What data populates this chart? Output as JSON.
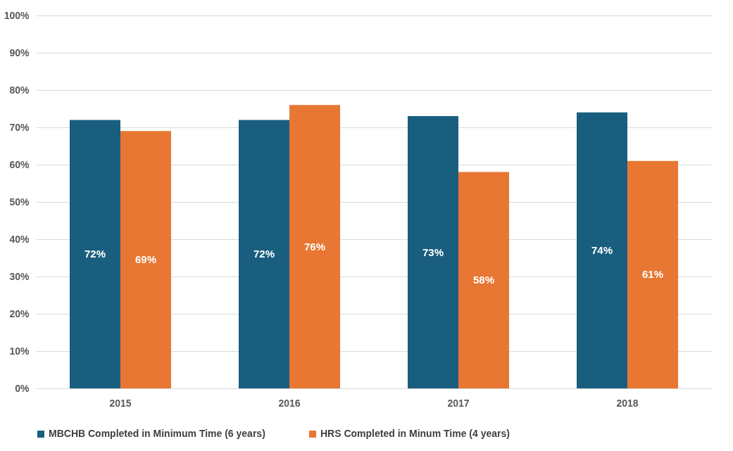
{
  "chart_data": {
    "type": "bar",
    "categories": [
      "2015",
      "2016",
      "2017",
      "2018"
    ],
    "series": [
      {
        "name": "MBCHB Completed in Minimum Time (6 years)",
        "color": "#195e7f",
        "values": [
          72,
          72,
          73,
          74
        ],
        "value_labels": [
          "72%",
          "72%",
          "73%",
          "74%"
        ]
      },
      {
        "name": "HRS Completed in Minum Time (4 years)",
        "color": "#e87733",
        "values": [
          69,
          76,
          58,
          61
        ],
        "value_labels": [
          "69%",
          "76%",
          "58%",
          "61%"
        ]
      }
    ],
    "ylim": [
      0,
      100
    ],
    "yticks": [
      {
        "value": 0,
        "label": "0%"
      },
      {
        "value": 10,
        "label": "10%"
      },
      {
        "value": 20,
        "label": "20%"
      },
      {
        "value": 30,
        "label": "30%"
      },
      {
        "value": 40,
        "label": "40%"
      },
      {
        "value": 50,
        "label": "50%"
      },
      {
        "value": 60,
        "label": "60%"
      },
      {
        "value": 70,
        "label": "70%"
      },
      {
        "value": 80,
        "label": "80%"
      },
      {
        "value": 90,
        "label": "90%"
      },
      {
        "value": 100,
        "label": "100%"
      }
    ],
    "grid": "y",
    "legend": "bottom"
  }
}
